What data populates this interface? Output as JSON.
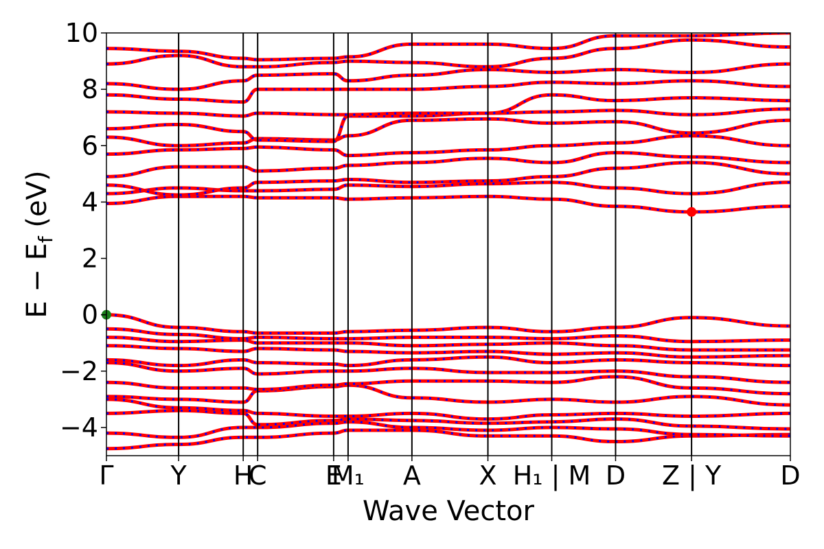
{
  "chart_data": {
    "type": "line",
    "title": "",
    "xlabel": "Wave Vector",
    "ylabel": "E − E_f (eV)",
    "ylabel_main": "E − E",
    "ylabel_sub": "f",
    "ylabel_unit": " (eV)",
    "ylim": [
      -5,
      10
    ],
    "yticks": [
      -4,
      -2,
      0,
      2,
      4,
      6,
      8,
      10
    ],
    "ytick_labels": [
      "−4",
      "−2",
      "0",
      "2",
      "4",
      "6",
      "8",
      "10"
    ],
    "xlim": [
      0,
      9.0
    ],
    "high_symmetry_points": [
      {
        "x": 0.0,
        "label": "Γ"
      },
      {
        "x": 0.95,
        "label": "Y"
      },
      {
        "x": 1.8,
        "label": "H"
      },
      {
        "x": 1.99,
        "label": "C"
      },
      {
        "x": 2.99,
        "label": "E"
      },
      {
        "x": 3.18,
        "label": "M₁"
      },
      {
        "x": 4.02,
        "label": "A"
      },
      {
        "x": 5.02,
        "label": "X"
      },
      {
        "x": 5.86,
        "label": "H₁ | M"
      },
      {
        "x": 6.7,
        "label": "D"
      },
      {
        "x": 7.7,
        "label": "Z | Y"
      },
      {
        "x": 9.0,
        "label": "D"
      }
    ],
    "line_style": {
      "color": "#ff0000",
      "overlay_color": "#0000ff",
      "overlay_dash": "dotted"
    },
    "grid": false,
    "series": [
      {
        "values": [
          -4.75,
          -4.6,
          -4.35,
          -4.35,
          -4.2,
          -4.1,
          -4.1,
          -4.3,
          -4.3,
          -4.5,
          -4.3,
          -4.25,
          -4.3
        ]
      },
      {
        "values": [
          -4.2,
          -4.35,
          -4.0,
          -4.0,
          -3.85,
          -3.8,
          -4.0,
          -4.1,
          -4.0,
          -4.05,
          -4.25,
          -4.3,
          -4.3
        ]
      },
      {
        "values": [
          -3.5,
          -3.4,
          -3.5,
          -3.9,
          -3.75,
          -3.7,
          -3.75,
          -3.85,
          -3.8,
          -3.7,
          -3.95,
          -4.05,
          -3.8
        ]
      },
      {
        "values": [
          -3.0,
          -3.3,
          -3.4,
          -3.5,
          -3.6,
          -3.6,
          -3.5,
          -3.7,
          -3.55,
          -3.5,
          -3.6,
          -3.5,
          -3.6
        ]
      },
      {
        "values": [
          -2.9,
          -3.0,
          -3.1,
          -2.7,
          -2.55,
          -2.5,
          -2.95,
          -3.1,
          -3.0,
          -3.1,
          -2.9,
          -3.2,
          -3.5
        ]
      },
      {
        "values": [
          -2.4,
          -2.6,
          -2.6,
          -2.65,
          -2.5,
          -2.45,
          -2.35,
          -2.35,
          -2.4,
          -2.2,
          -2.6,
          -2.8,
          -3.2
        ]
      },
      {
        "values": [
          -1.7,
          -2.0,
          -1.9,
          -2.1,
          -2.0,
          -2.0,
          -1.9,
          -2.05,
          -2.05,
          -2.0,
          -2.2,
          -2.4,
          -2.9
        ]
      },
      {
        "values": [
          -1.6,
          -1.8,
          -1.6,
          -1.7,
          -1.75,
          -1.8,
          -1.6,
          -1.5,
          -1.7,
          -1.6,
          -1.7,
          -1.8,
          -2.2
        ]
      },
      {
        "values": [
          -1.1,
          -1.2,
          -1.3,
          -1.2,
          -1.25,
          -1.3,
          -1.35,
          -1.3,
          -1.4,
          -1.35,
          -1.5,
          -1.45,
          -1.6
        ]
      },
      {
        "values": [
          -0.8,
          -0.95,
          -0.9,
          -1.0,
          -1.0,
          -1.0,
          -1.1,
          -1.05,
          -1.0,
          -1.1,
          -1.25,
          -1.25,
          -1.3
        ]
      },
      {
        "values": [
          -0.5,
          -0.7,
          -0.85,
          -0.8,
          -0.85,
          -0.85,
          -0.8,
          -0.8,
          -0.85,
          -0.75,
          -0.95,
          -0.9,
          -1.0
        ]
      },
      {
        "values": [
          0.0,
          -0.45,
          -0.6,
          -0.65,
          -0.65,
          -0.6,
          -0.55,
          -0.45,
          -0.6,
          -0.45,
          -0.1,
          -0.4,
          -0.4
        ]
      },
      {
        "values": [
          3.95,
          4.2,
          4.2,
          4.15,
          4.15,
          4.1,
          4.15,
          4.2,
          4.1,
          3.85,
          3.65,
          3.85,
          3.85
        ]
      },
      {
        "values": [
          4.3,
          4.5,
          4.4,
          4.4,
          4.45,
          4.6,
          4.55,
          4.65,
          4.7,
          4.5,
          4.3,
          4.7,
          4.85
        ]
      },
      {
        "values": [
          4.6,
          4.25,
          4.5,
          4.7,
          4.75,
          4.8,
          4.7,
          4.75,
          4.9,
          5.2,
          5.4,
          5.0,
          5.1
        ]
      },
      {
        "values": [
          4.9,
          5.25,
          5.25,
          5.1,
          5.2,
          5.3,
          5.4,
          5.55,
          5.4,
          5.75,
          5.6,
          5.4,
          5.55
        ]
      },
      {
        "values": [
          5.7,
          5.85,
          5.9,
          5.95,
          5.85,
          5.65,
          5.75,
          5.85,
          6.0,
          6.1,
          6.35,
          6.0,
          5.95
        ]
      },
      {
        "values": [
          6.3,
          6.0,
          6.1,
          6.25,
          6.2,
          6.35,
          6.9,
          6.95,
          6.8,
          6.85,
          6.45,
          6.9,
          6.9
        ]
      },
      {
        "values": [
          6.6,
          6.75,
          6.5,
          6.2,
          6.15,
          7.05,
          7.05,
          7.15,
          7.2,
          7.25,
          7.1,
          7.3,
          7.2
        ]
      },
      {
        "values": [
          7.2,
          7.15,
          7.05,
          7.15,
          7.1,
          7.1,
          7.15,
          7.15,
          7.8,
          7.6,
          7.7,
          7.6,
          7.55
        ]
      },
      {
        "values": [
          7.8,
          7.65,
          7.55,
          8.0,
          8.0,
          8.0,
          8.0,
          8.1,
          8.25,
          8.2,
          8.3,
          8.1,
          8.25
        ]
      },
      {
        "values": [
          8.2,
          8.0,
          8.3,
          8.5,
          8.55,
          8.3,
          8.5,
          8.7,
          8.6,
          8.7,
          8.6,
          8.9,
          8.95
        ]
      },
      {
        "values": [
          8.9,
          9.2,
          8.8,
          8.8,
          8.95,
          9.0,
          8.95,
          8.8,
          9.1,
          9.45,
          9.75,
          9.5,
          9.5
        ]
      },
      {
        "values": [
          9.45,
          9.35,
          9.1,
          9.05,
          9.1,
          9.15,
          9.6,
          9.6,
          9.45,
          9.9,
          9.9,
          10.0,
          10.0
        ]
      }
    ],
    "markers": [
      {
        "x": 0.0,
        "y": 0.0,
        "color": "#1a7f1a"
      },
      {
        "x": 7.7,
        "y": 3.65,
        "color": "#ff0000"
      }
    ]
  }
}
